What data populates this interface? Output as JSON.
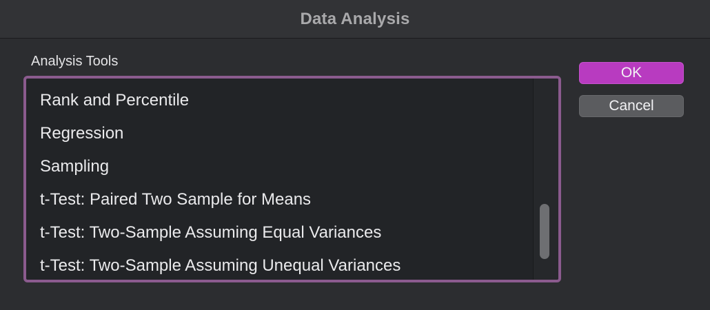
{
  "window": {
    "title": "Data Analysis"
  },
  "analysis_tools": {
    "label": "Analysis Tools",
    "items": [
      "Rank and Percentile",
      "Regression",
      "Sampling",
      "t-Test: Paired Two Sample for Means",
      "t-Test: Two-Sample Assuming Equal Variances",
      "t-Test: Two-Sample Assuming Unequal Variances"
    ]
  },
  "buttons": {
    "ok_label": "OK",
    "cancel_label": "Cancel"
  },
  "colors": {
    "accent": "#b83bc0",
    "list_border": "#8b5b8e"
  }
}
